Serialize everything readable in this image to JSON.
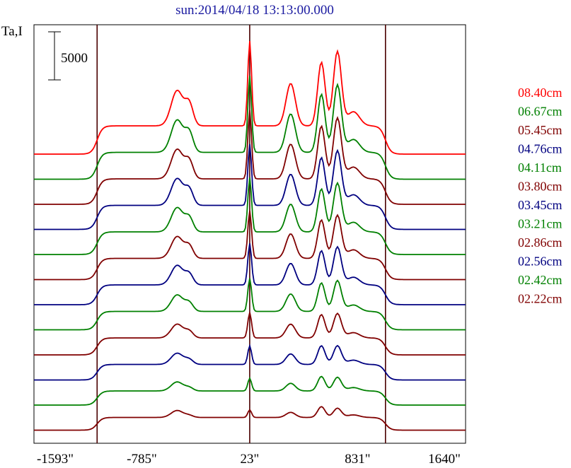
{
  "chart_data": {
    "type": "line",
    "title": "sun:2014/04/18 13:13:00.000",
    "title_color": "#1a1aa0",
    "ylabel": "Ta,I",
    "scale_bar_label": "5000",
    "x_ticks": [
      "-1593\"",
      "-785\"",
      "23\"",
      "831\"",
      "1640\""
    ],
    "xlim": [
      -1593,
      1640
    ],
    "vlines": [
      -1120,
      23,
      1040
    ],
    "grid": false,
    "legend_position": "right",
    "series": [
      {
        "name": "08.40cm",
        "color": "#ff0000",
        "base": 1800,
        "amp": 1.0,
        "peak_shape": 1.0
      },
      {
        "name": "06.67cm",
        "color": "#008000",
        "base": 1400,
        "amp": 0.95,
        "peak_shape": 0.95
      },
      {
        "name": "05.45cm",
        "color": "#800000",
        "base": 1200,
        "amp": 0.9,
        "peak_shape": 0.9
      },
      {
        "name": "04.76cm",
        "color": "#000080",
        "base": 1100,
        "amp": 0.85,
        "peak_shape": 0.85
      },
      {
        "name": "04.11cm",
        "color": "#008000",
        "base": 1000,
        "amp": 0.8,
        "peak_shape": 0.8
      },
      {
        "name": "03.80cm",
        "color": "#800000",
        "base": 900,
        "amp": 0.75,
        "peak_shape": 0.75
      },
      {
        "name": "03.45cm",
        "color": "#000080",
        "base": 800,
        "amp": 0.7,
        "peak_shape": 0.7
      },
      {
        "name": "03.21cm",
        "color": "#008000",
        "base": 700,
        "amp": 0.65,
        "peak_shape": 0.6
      },
      {
        "name": "02.86cm",
        "color": "#800000",
        "base": 600,
        "amp": 0.6,
        "peak_shape": 0.5
      },
      {
        "name": "02.56cm",
        "color": "#000080",
        "base": 500,
        "amp": 0.55,
        "peak_shape": 0.4
      },
      {
        "name": "02.42cm",
        "color": "#008000",
        "base": 400,
        "amp": 0.5,
        "peak_shape": 0.3
      },
      {
        "name": "02.22cm",
        "color": "#800000",
        "base": 300,
        "amp": 0.45,
        "peak_shape": 0.2
      }
    ]
  }
}
